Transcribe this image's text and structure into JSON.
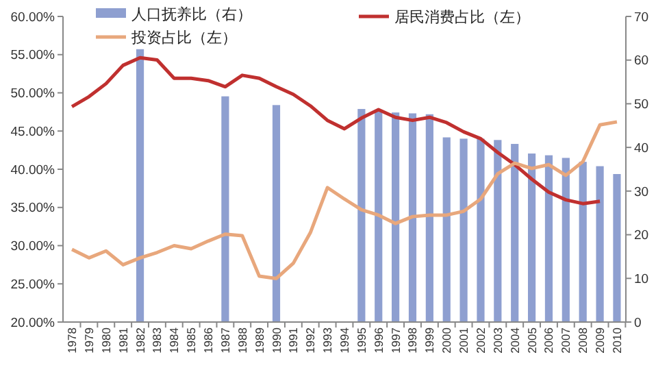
{
  "chart_data": {
    "type": "bar",
    "categories": [
      "1978",
      "1979",
      "1980",
      "1981",
      "1982",
      "1983",
      "1984",
      "1985",
      "1986",
      "1987",
      "1988",
      "1989",
      "1990",
      "1991",
      "1992",
      "1993",
      "1994",
      "1995",
      "1996",
      "1997",
      "1998",
      "1999",
      "2000",
      "2001",
      "2002",
      "2003",
      "2004",
      "2005",
      "2006",
      "2007",
      "2008",
      "2009",
      "2010"
    ],
    "series": [
      {
        "name": "人口抚养比（右）",
        "axis": "y2",
        "color": "#8e9fd0",
        "values": [
          null,
          null,
          null,
          null,
          62.5,
          null,
          null,
          null,
          null,
          51.7,
          null,
          null,
          49.7,
          null,
          null,
          null,
          null,
          48.8,
          48.6,
          48.0,
          47.8,
          47.6,
          42.3,
          42.0,
          42.0,
          41.7,
          40.8,
          38.6,
          38.2,
          37.6,
          36.7,
          35.7,
          33.9
        ]
      },
      {
        "name": "居民消费占比（左）",
        "type": "line",
        "axis": "y",
        "color": "#c0302f",
        "values": [
          48.2,
          49.5,
          51.2,
          53.6,
          54.6,
          54.3,
          51.9,
          51.9,
          51.6,
          50.8,
          52.3,
          51.9,
          50.8,
          49.8,
          48.3,
          46.4,
          45.3,
          46.7,
          47.8,
          46.8,
          46.4,
          46.8,
          46.1,
          44.9,
          44.0,
          42.2,
          40.6,
          38.7,
          37.0,
          36.0,
          35.5,
          35.8,
          null
        ]
      },
      {
        "name": "投资占比（左）",
        "type": "line",
        "axis": "y",
        "color": "#e8a77c",
        "values": [
          29.5,
          28.4,
          29.3,
          27.5,
          28.4,
          29.1,
          30.0,
          29.6,
          30.6,
          31.5,
          31.3,
          26.0,
          25.7,
          27.7,
          31.7,
          37.6,
          36.1,
          34.7,
          34.0,
          32.9,
          33.8,
          34.0,
          34.0,
          34.5,
          36.1,
          39.4,
          40.8,
          40.1,
          40.6,
          39.2,
          41.0,
          45.8,
          46.2
        ]
      }
    ],
    "ylim": [
      20,
      60
    ],
    "yticks": [
      {
        "value": 20,
        "label": "20.00%"
      },
      {
        "value": 25,
        "label": "25.00%"
      },
      {
        "value": 30,
        "label": "30.00%"
      },
      {
        "value": 35,
        "label": "35.00%"
      },
      {
        "value": 40,
        "label": "40.00%"
      },
      {
        "value": 45,
        "label": "45.00%"
      },
      {
        "value": 50,
        "label": "50.00%"
      },
      {
        "value": 55,
        "label": "55.00%"
      },
      {
        "value": 60,
        "label": "60.00%"
      }
    ],
    "y2lim": [
      0,
      70
    ],
    "y2ticks": [
      0,
      10,
      20,
      30,
      40,
      50,
      60,
      70
    ],
    "legend": "top",
    "grid": false
  }
}
